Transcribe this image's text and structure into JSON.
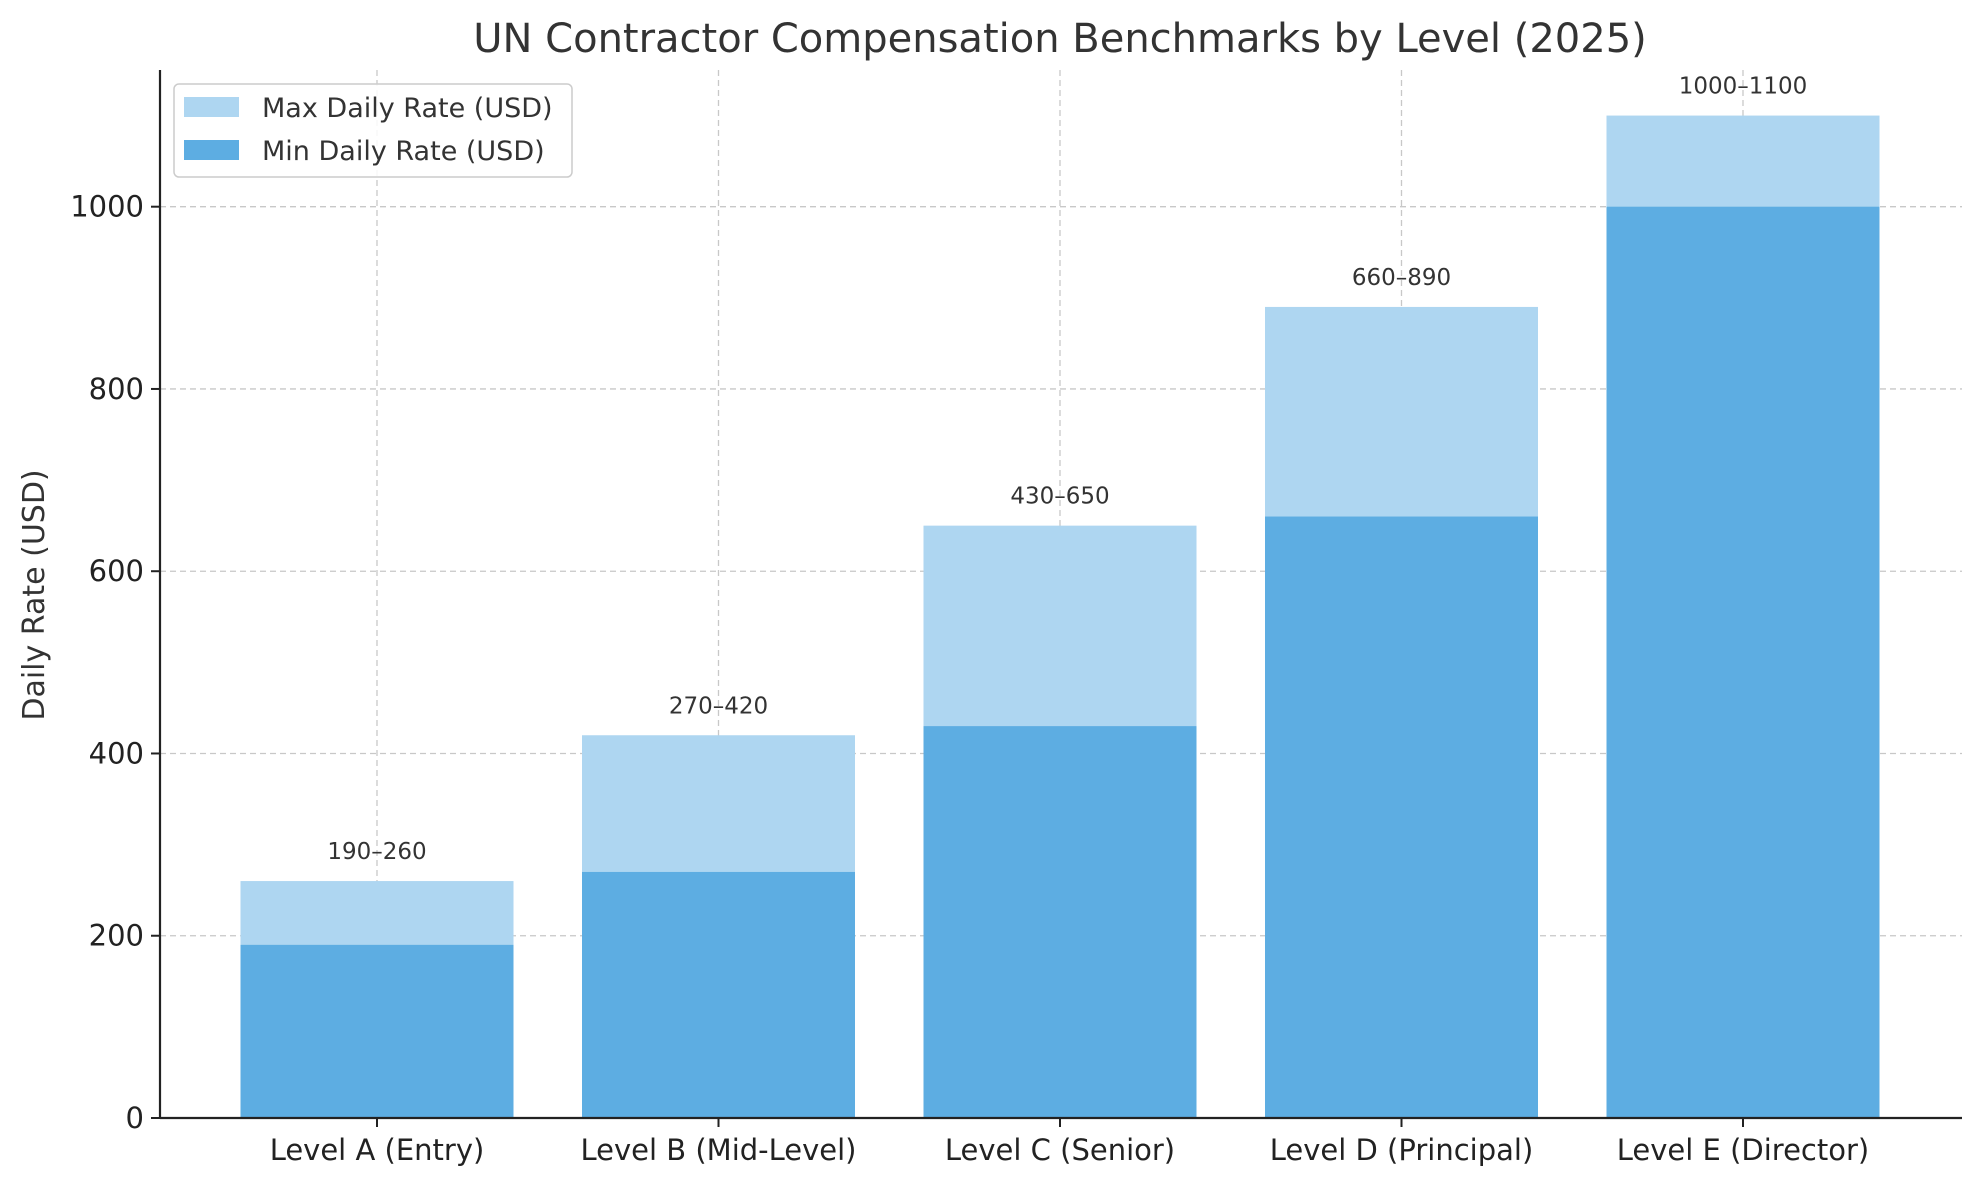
{
  "colors": {
    "min_series": "#5dade2",
    "max_series": "#aed6f1",
    "grid": "#c8c8c8",
    "axis": "#222222",
    "text": "#333333"
  },
  "chart_data": {
    "type": "bar",
    "stacking": "overlay",
    "title": "UN Contractor Compensation Benchmarks by Level (2025)",
    "xlabel": "",
    "ylabel": "Daily Rate (USD)",
    "ylim": [
      0,
      1150
    ],
    "yticks": [
      0,
      200,
      400,
      600,
      800,
      1000
    ],
    "grid": true,
    "legend_position": "top-left",
    "categories": [
      "Level A (Entry)",
      "Level B (Mid-Level)",
      "Level C (Senior)",
      "Level D (Principal)",
      "Level E (Director)"
    ],
    "series": [
      {
        "name": "Max Daily Rate (USD)",
        "values": [
          260,
          420,
          650,
          890,
          1100
        ],
        "color": "#aed6f1"
      },
      {
        "name": "Min Daily Rate (USD)",
        "values": [
          190,
          270,
          430,
          660,
          1000
        ],
        "color": "#5dade2"
      }
    ],
    "data_labels": [
      "190–260",
      "270–420",
      "430–650",
      "660–890",
      "1000–1100"
    ]
  }
}
